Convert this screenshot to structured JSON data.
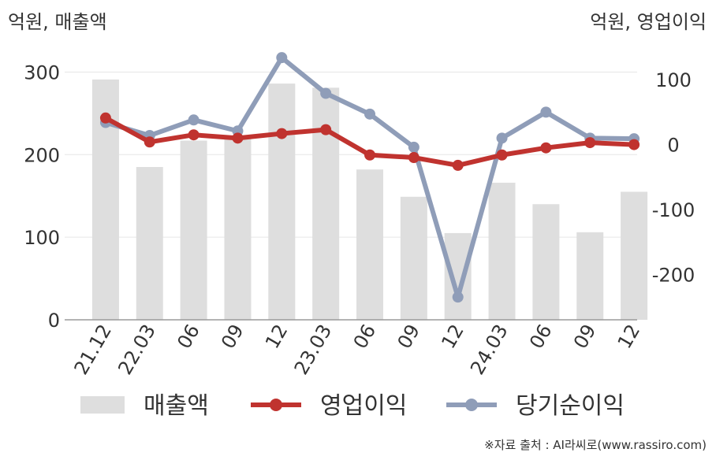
{
  "chart_data": {
    "type": "bar+line",
    "left_axis_label": "억원, 매출액",
    "right_axis_label": "억원, 영업이익",
    "categories": [
      "21.12",
      "22.03",
      "06",
      "09",
      "12",
      "23.03",
      "06",
      "09",
      "12",
      "24.03",
      "06",
      "09",
      "12"
    ],
    "left_axis": {
      "ylim": [
        0,
        330
      ],
      "ticks": [
        0,
        100,
        200,
        300
      ]
    },
    "right_axis": {
      "ylim": [
        -270,
        150
      ],
      "ticks": [
        -200,
        -100,
        0,
        100
      ]
    },
    "grid": true,
    "legend_position": "bottom",
    "series": [
      {
        "name": "매출액",
        "type": "bar",
        "axis": "left",
        "color": "#dedede",
        "values": [
          291,
          185,
          217,
          220,
          286,
          281,
          182,
          149,
          105,
          166,
          140,
          106,
          155
        ]
      },
      {
        "name": "영업이익",
        "type": "line",
        "axis": "right",
        "color": "#c0332f",
        "values": [
          41,
          4,
          15,
          10,
          17,
          23,
          -16,
          -20,
          -32,
          -16,
          -5,
          3,
          0
        ]
      },
      {
        "name": "당기순이익",
        "type": "line",
        "axis": "right",
        "color": "#8f9db8",
        "values": [
          34,
          14,
          38,
          21,
          134,
          79,
          47,
          -4,
          -235,
          10,
          50,
          10,
          9
        ]
      }
    ]
  },
  "source": "※자료 출처 : AI라씨로(www.rassiro.com)"
}
